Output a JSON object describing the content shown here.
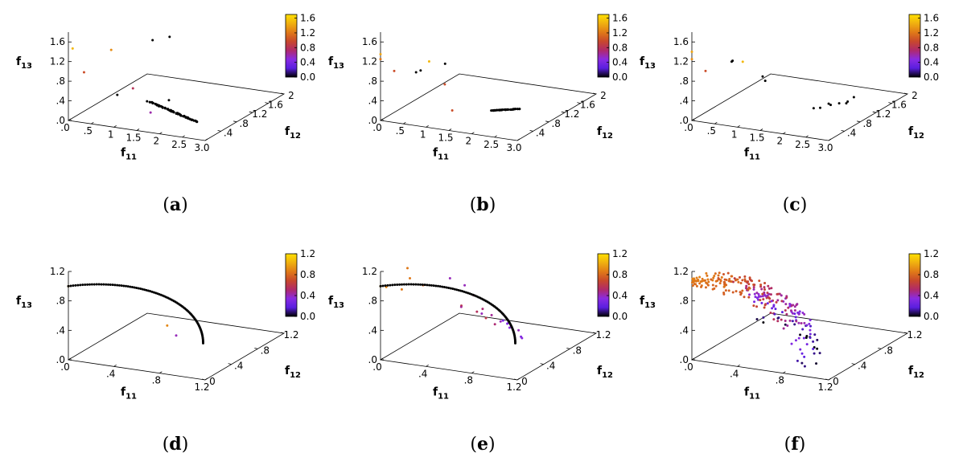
{
  "colorbar": {
    "colors": [
      "#000000",
      "#5a1fe0",
      "#8a2be2",
      "#b02a6a",
      "#c8482c",
      "#e07a18",
      "#f0b010",
      "#ffe000"
    ]
  },
  "chart_data": [
    {
      "panel": "a",
      "type": "scatter3d",
      "axes": {
        "x": {
          "label": "f11",
          "range": [
            0,
            3.0
          ],
          "ticks": [
            ".0",
            ".5",
            "1",
            "1.5",
            "2",
            "2.5",
            "3.0"
          ],
          "tickvals": [
            0,
            0.5,
            1,
            1.5,
            2,
            2.5,
            3.0
          ]
        },
        "y": {
          "label": "f12",
          "range": [
            0,
            2
          ],
          "ticks": [
            ".4",
            ".8",
            "1.2",
            "1.6",
            "2"
          ],
          "tickvals": [
            0.4,
            0.8,
            1.2,
            1.6,
            2
          ]
        },
        "z": {
          "label": "f13",
          "range": [
            0,
            1.8
          ],
          "ticks": [
            ".0",
            ".4",
            ".8",
            "1.2",
            "1.6"
          ],
          "tickvals": [
            0,
            0.4,
            0.8,
            1.2,
            1.6
          ]
        }
      },
      "colorbar": {
        "range": [
          0,
          1.7
        ],
        "ticks": [
          "0.0",
          "0.4",
          "0.8",
          "1.2",
          "1.6"
        ],
        "tickvals": [
          0,
          0.4,
          0.8,
          1.2,
          1.6
        ]
      },
      "outliers": [
        [
          0.05,
          0.05,
          1.45,
          1.5
        ],
        [
          0.3,
          0.05,
          1.0,
          1.0
        ],
        [
          0.55,
          0.45,
          1.3,
          1.3
        ],
        [
          0.55,
          1.5,
          1.0,
          0
        ],
        [
          0.75,
          1.7,
          1.0,
          0
        ],
        [
          0.9,
          0.2,
          0.55,
          0.0
        ],
        [
          1.5,
          0.35,
          0.2,
          0.6
        ],
        [
          1.2,
          0.25,
          0.7,
          0.8
        ],
        [
          1.6,
          0.7,
          0.3,
          0.0
        ]
      ],
      "front": {
        "type": "line",
        "from": [
          1.3,
          0.55,
          0.3
        ],
        "to": [
          2.3,
          0.6,
          0.0
        ],
        "n": 70,
        "color": 0.0,
        "jitter": 0.01
      },
      "caption": "a"
    },
    {
      "panel": "b",
      "type": "scatter3d",
      "axes": {
        "x": {
          "label": "f11",
          "range": [
            0,
            3.0
          ],
          "ticks": [
            ".0",
            ".5",
            "1",
            "1.5",
            "2",
            "2.5",
            "3.0"
          ],
          "tickvals": [
            0,
            0.5,
            1,
            1.5,
            2,
            2.5,
            3.0
          ]
        },
        "y": {
          "label": "f12",
          "range": [
            0,
            2
          ],
          "ticks": [
            ".4",
            ".8",
            "1.2",
            "1.6",
            "2"
          ],
          "tickvals": [
            0.4,
            0.8,
            1.2,
            1.6,
            2
          ]
        },
        "z": {
          "label": "f13",
          "range": [
            0,
            1.8
          ],
          "ticks": [
            ".0",
            ".4",
            ".8",
            "1.2",
            "1.6"
          ],
          "tickvals": [
            0,
            0.4,
            0.8,
            1.2,
            1.6
          ]
        }
      },
      "colorbar": {
        "range": [
          0,
          1.7
        ],
        "ticks": [
          "0.0",
          "0.4",
          "0.8",
          "1.2",
          "1.6"
        ],
        "tickvals": [
          0,
          0.4,
          0.8,
          1.2,
          1.6
        ]
      },
      "outliers": [
        [
          0.0,
          0.0,
          1.35,
          1.4
        ],
        [
          0.0,
          0.0,
          1.25,
          1.2
        ],
        [
          0.3,
          0.0,
          1.05,
          1.0
        ],
        [
          0.65,
          0.15,
          1.0,
          0
        ],
        [
          0.75,
          0.15,
          1.05,
          0
        ],
        [
          0.85,
          0.25,
          1.2,
          1.5
        ],
        [
          1.2,
          0.25,
          1.2,
          0
        ],
        [
          1.15,
          0.3,
          0.75,
          1.0
        ],
        [
          1.4,
          0.2,
          0.3,
          1.0
        ]
      ],
      "front": {
        "type": "line",
        "from": [
          1.65,
          0.9,
          0.0
        ],
        "to": [
          2.1,
          1.1,
          0.0
        ],
        "n": 40,
        "color": 0.0,
        "jitter": 0.005
      },
      "caption": "b"
    },
    {
      "panel": "c",
      "type": "scatter3d",
      "axes": {
        "x": {
          "label": "f11",
          "range": [
            0,
            3.0
          ],
          "ticks": [
            ".0",
            ".5",
            "1",
            "1.5",
            "2",
            "2.5",
            "3.0"
          ],
          "tickvals": [
            0,
            0.5,
            1,
            1.5,
            2,
            2.5,
            3.0
          ]
        },
        "y": {
          "label": "f12",
          "range": [
            0,
            2
          ],
          "ticks": [
            ".4",
            ".8",
            "1.2",
            "1.6",
            "2"
          ],
          "tickvals": [
            0.4,
            0.8,
            1.2,
            1.6,
            2
          ]
        },
        "z": {
          "label": "f13",
          "range": [
            0,
            1.8
          ],
          "ticks": [
            ".0",
            ".4",
            ".8",
            "1.2",
            "1.6"
          ],
          "tickvals": [
            0,
            0.4,
            0.8,
            1.2,
            1.6
          ]
        }
      },
      "colorbar": {
        "range": [
          0,
          1.7
        ],
        "ticks": [
          "0.0",
          "0.4",
          "0.8",
          "1.2",
          "1.6"
        ],
        "tickvals": [
          0,
          0.4,
          0.8,
          1.2,
          1.6
        ]
      },
      "outliers": [
        [
          0.0,
          0.0,
          1.4,
          1.4
        ],
        [
          0.0,
          0.0,
          1.25,
          1.3
        ],
        [
          0.3,
          0.0,
          1.05,
          1.0
        ],
        [
          0.7,
          0.2,
          1.2,
          0
        ],
        [
          0.72,
          0.2,
          1.22,
          0
        ],
        [
          0.9,
          0.25,
          1.2,
          1.5
        ],
        [
          1.25,
          0.35,
          0.9,
          0
        ],
        [
          1.35,
          0.3,
          0.85,
          0
        ],
        [
          1.95,
          1.0,
          0.05,
          0
        ],
        [
          2.05,
          1.15,
          0.05,
          0
        ],
        [
          2.15,
          1.25,
          0.05,
          0
        ],
        [
          2.25,
          1.35,
          0.05,
          0
        ],
        [
          2.05,
          1.1,
          0.1,
          0
        ],
        [
          2.35,
          1.2,
          0.1,
          0
        ],
        [
          2.3,
          1.45,
          0.1,
          0
        ],
        [
          1.85,
          0.95,
          0.05,
          0
        ]
      ],
      "front": null,
      "caption": "c"
    },
    {
      "panel": "d",
      "type": "scatter3d",
      "axes": {
        "x": {
          "label": "f11",
          "range": [
            0,
            1.2
          ],
          "ticks": [
            ".0",
            ".4",
            ".8",
            "1.2"
          ],
          "tickvals": [
            0,
            0.4,
            0.8,
            1.2
          ]
        },
        "y": {
          "label": "f12",
          "range": [
            0,
            1.2
          ],
          "ticks": [
            "0",
            ".4",
            ".8",
            "1.2"
          ],
          "tickvals": [
            0,
            0.4,
            0.8,
            1.2
          ]
        },
        "z": {
          "label": "f13",
          "range": [
            0,
            1.2
          ],
          "ticks": [
            ".0",
            ".4",
            ".8",
            "1.2"
          ],
          "tickvals": [
            0,
            0.4,
            0.8,
            1.2
          ]
        }
      },
      "colorbar": {
        "range": [
          0,
          1.2
        ],
        "ticks": [
          "0.0",
          "0.4",
          "0.8",
          "1.2"
        ],
        "tickvals": [
          0,
          0.4,
          0.8,
          1.2
        ]
      },
      "outliers": [
        [
          0.0,
          0.0,
          1.0,
          1.0
        ],
        [
          0.55,
          0.55,
          0.3,
          0.9
        ],
        [
          0.6,
          0.6,
          0.15,
          0.4
        ]
      ],
      "front": {
        "type": "arc",
        "center": [
          0,
          0,
          0
        ],
        "radius": 1.0,
        "n": 90,
        "color": 0.0
      },
      "caption": "d"
    },
    {
      "panel": "e",
      "type": "scatter3d",
      "axes": {
        "x": {
          "label": "f11",
          "range": [
            0,
            1.2
          ],
          "ticks": [
            ".0",
            ".4",
            ".8",
            "1.2"
          ],
          "tickvals": [
            0,
            0.4,
            0.8,
            1.2
          ]
        },
        "y": {
          "label": "f12",
          "range": [
            0,
            1.2
          ],
          "ticks": [
            "0",
            ".4",
            ".8",
            "1.2"
          ],
          "tickvals": [
            0,
            0.4,
            0.8,
            1.2
          ]
        },
        "z": {
          "label": "f13",
          "range": [
            0,
            1.2
          ],
          "ticks": [
            ".0",
            ".4",
            ".8",
            "1.2"
          ],
          "tickvals": [
            0,
            0.4,
            0.8,
            1.2
          ]
        }
      },
      "colorbar": {
        "range": [
          0,
          1.2
        ],
        "ticks": [
          "0.0",
          "0.4",
          "0.8",
          "1.2"
        ],
        "tickvals": [
          0,
          0.4,
          0.8,
          1.2
        ]
      },
      "outliers": [
        [
          0.0,
          0.0,
          1.0,
          1.0
        ],
        [
          0.05,
          0.0,
          1.0,
          0.9
        ],
        [
          0.1,
          0.15,
          0.9,
          0.85
        ],
        [
          0.15,
          0.15,
          1.2,
          0.85
        ],
        [
          0.2,
          0.1,
          1.1,
          0.85
        ],
        [
          0.2,
          0.3,
          0.9,
          0.8
        ],
        [
          0.35,
          0.45,
          0.95,
          0.4
        ],
        [
          0.45,
          0.5,
          0.85,
          0.4
        ],
        [
          0.5,
          0.55,
          0.7,
          0.5
        ],
        [
          0.55,
          0.6,
          0.5,
          0.5
        ],
        [
          0.6,
          0.65,
          0.4,
          0.45
        ],
        [
          0.65,
          0.7,
          0.3,
          0.4
        ],
        [
          0.55,
          0.65,
          0.35,
          0.6
        ],
        [
          0.7,
          0.75,
          0.2,
          0.35
        ],
        [
          0.75,
          0.8,
          0.15,
          0.4
        ],
        [
          0.6,
          0.7,
          0.25,
          0.5
        ],
        [
          0.5,
          0.6,
          0.45,
          0.55
        ],
        [
          0.45,
          0.45,
          0.6,
          0.6
        ],
        [
          0.42,
          0.5,
          0.55,
          0.45
        ],
        [
          0.7,
          0.65,
          0.35,
          0.3
        ],
        [
          0.72,
          0.7,
          0.3,
          0.35
        ],
        [
          0.68,
          0.75,
          0.25,
          0.3
        ],
        [
          0.8,
          0.75,
          0.1,
          0.3
        ],
        [
          0.78,
          0.8,
          0.05,
          0.35
        ],
        [
          0.6,
          0.5,
          0.5,
          0.4
        ]
      ],
      "front": {
        "type": "arc",
        "center": [
          0,
          0,
          0
        ],
        "radius": 1.0,
        "n": 90,
        "color": 0.0
      },
      "caption": "e"
    },
    {
      "panel": "f",
      "type": "scatter3d",
      "axes": {
        "x": {
          "label": "f11",
          "range": [
            0,
            1.2
          ],
          "ticks": [
            ".0",
            ".4",
            ".8",
            "1.2"
          ],
          "tickvals": [
            0,
            0.4,
            0.8,
            1.2
          ]
        },
        "y": {
          "label": "f12",
          "range": [
            0,
            1.2
          ],
          "ticks": [
            "0",
            ".4",
            ".8",
            "1.2"
          ],
          "tickvals": [
            0,
            0.4,
            0.8,
            1.2
          ]
        },
        "z": {
          "label": "f13",
          "range": [
            0,
            1.2
          ],
          "ticks": [
            ".0",
            ".4",
            ".8",
            "1.2"
          ],
          "tickvals": [
            0,
            0.4,
            0.8,
            1.2
          ]
        }
      },
      "colorbar": {
        "range": [
          0,
          1.2
        ],
        "ticks": [
          "0.0",
          "0.4",
          "0.8",
          "1.2"
        ],
        "tickvals": [
          0,
          0.4,
          0.8,
          1.2
        ]
      },
      "outliers": [],
      "front": {
        "type": "cloud",
        "radius": 1.05,
        "n": 260,
        "color": "z"
      },
      "caption": "f"
    }
  ]
}
